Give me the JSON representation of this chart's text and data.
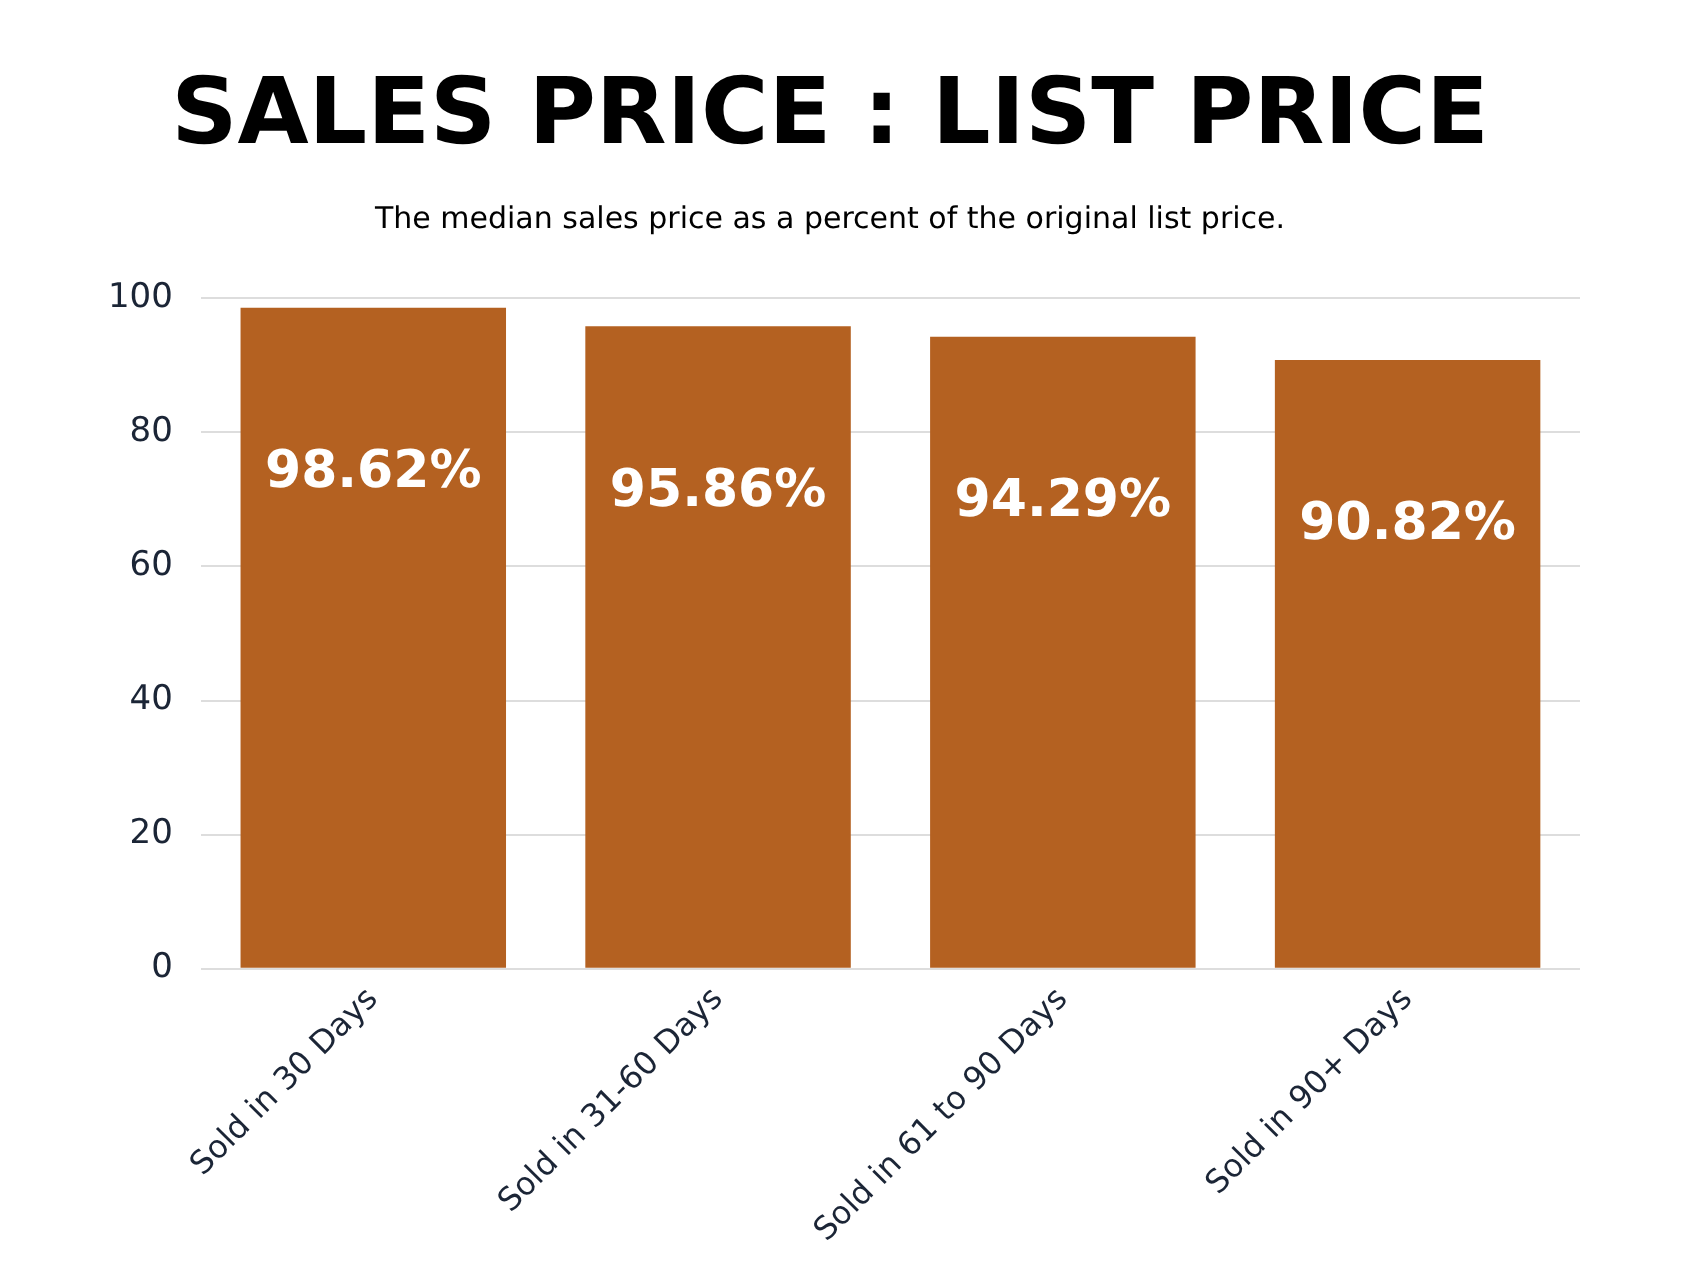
{
  "chart_data": {
    "type": "bar",
    "title": "SALES PRICE : LIST PRICE",
    "subtitle": "The median sales price as a percent of the original list price.",
    "categories": [
      "Sold in 30 Days",
      "Sold in 31-60 Days",
      "Sold in 61 to 90 Days",
      "Sold in 90+ Days"
    ],
    "values": [
      98.62,
      95.86,
      94.29,
      90.82
    ],
    "value_labels": [
      "98.62%",
      "95.86%",
      "94.29%",
      "90.82%"
    ],
    "color": "#b46121",
    "ylim": [
      0,
      100
    ],
    "yticks": [
      0,
      20,
      40,
      60,
      80,
      100
    ],
    "grid": "y",
    "legend": false
  }
}
